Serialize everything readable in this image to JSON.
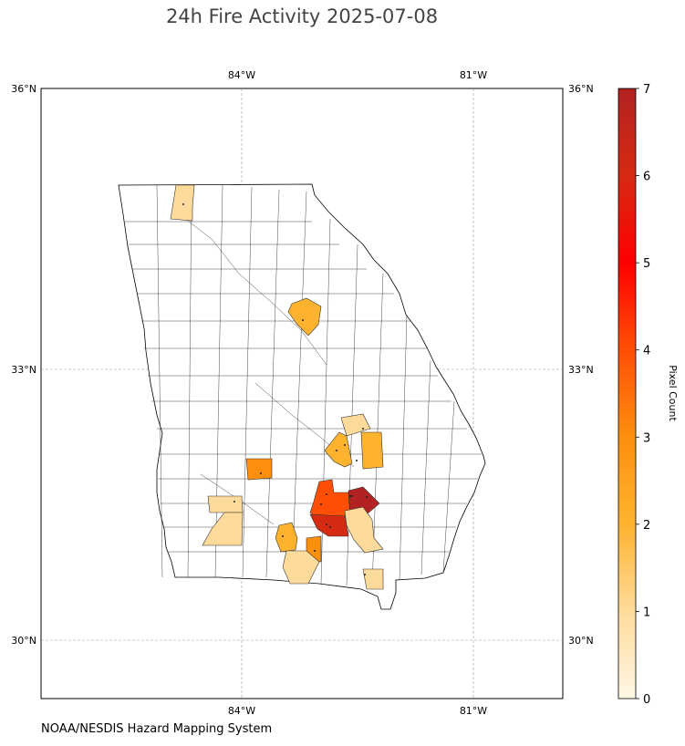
{
  "title": "24h Fire Activity 2025-07-08",
  "credit": "NOAA/NESDIS Hazard Mapping System",
  "map": {
    "region": "Georgia",
    "lon_labels": [
      "84°W",
      "81°W"
    ],
    "lat_labels": [
      "36°N",
      "33°N",
      "30°N"
    ],
    "gridlines": true
  },
  "colorbar": {
    "label": "Pixel Count",
    "min": 0,
    "max": 7,
    "ticks": [
      "0",
      "1",
      "2",
      "3",
      "4",
      "5",
      "6",
      "7"
    ],
    "colormap": [
      "#fff7e6",
      "#fedb9a",
      "#fdb32e",
      "#fd8f0f",
      "#ff4f06",
      "#ff0000",
      "#d62a12",
      "#b22222"
    ]
  },
  "chart_data": {
    "type": "heatmap",
    "title": "24h Fire Activity 2025-07-08",
    "value_label": "Pixel Count",
    "range": [
      0,
      7
    ],
    "highlighted_counties": [
      {
        "value": 1
      },
      {
        "value": 2
      },
      {
        "value": 3
      },
      {
        "value": 1
      },
      {
        "value": 1
      },
      {
        "value": 2
      },
      {
        "value": 2
      },
      {
        "value": 1
      },
      {
        "value": 4
      },
      {
        "value": 6
      },
      {
        "value": 7
      },
      {
        "value": 2
      },
      {
        "value": 3
      },
      {
        "value": 1
      },
      {
        "value": 1
      },
      {
        "value": 1
      }
    ]
  }
}
